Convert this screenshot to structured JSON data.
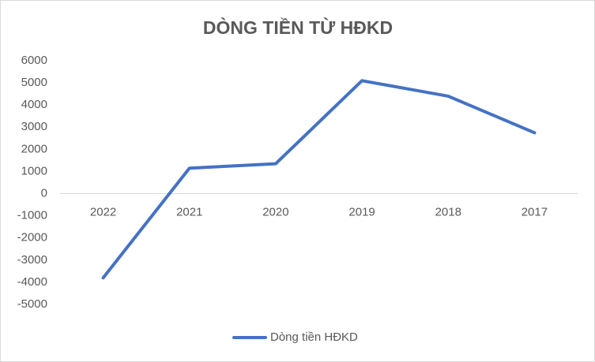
{
  "chart_data": {
    "type": "line",
    "title": "DÒNG TIỀN TỪ HĐKD",
    "categories": [
      "2022",
      "2021",
      "2020",
      "2019",
      "2018",
      "2017"
    ],
    "series": [
      {
        "name": "Dòng tiền HĐKD",
        "color": "#4472c4",
        "values": [
          -3800,
          1150,
          1350,
          5100,
          4400,
          2750
        ]
      }
    ],
    "ylim": [
      -5000,
      6000
    ],
    "yticks": [
      -5000,
      -4000,
      -3000,
      -2000,
      -1000,
      0,
      1000,
      2000,
      3000,
      4000,
      5000,
      6000
    ],
    "grid": false,
    "legend": "bottom"
  }
}
